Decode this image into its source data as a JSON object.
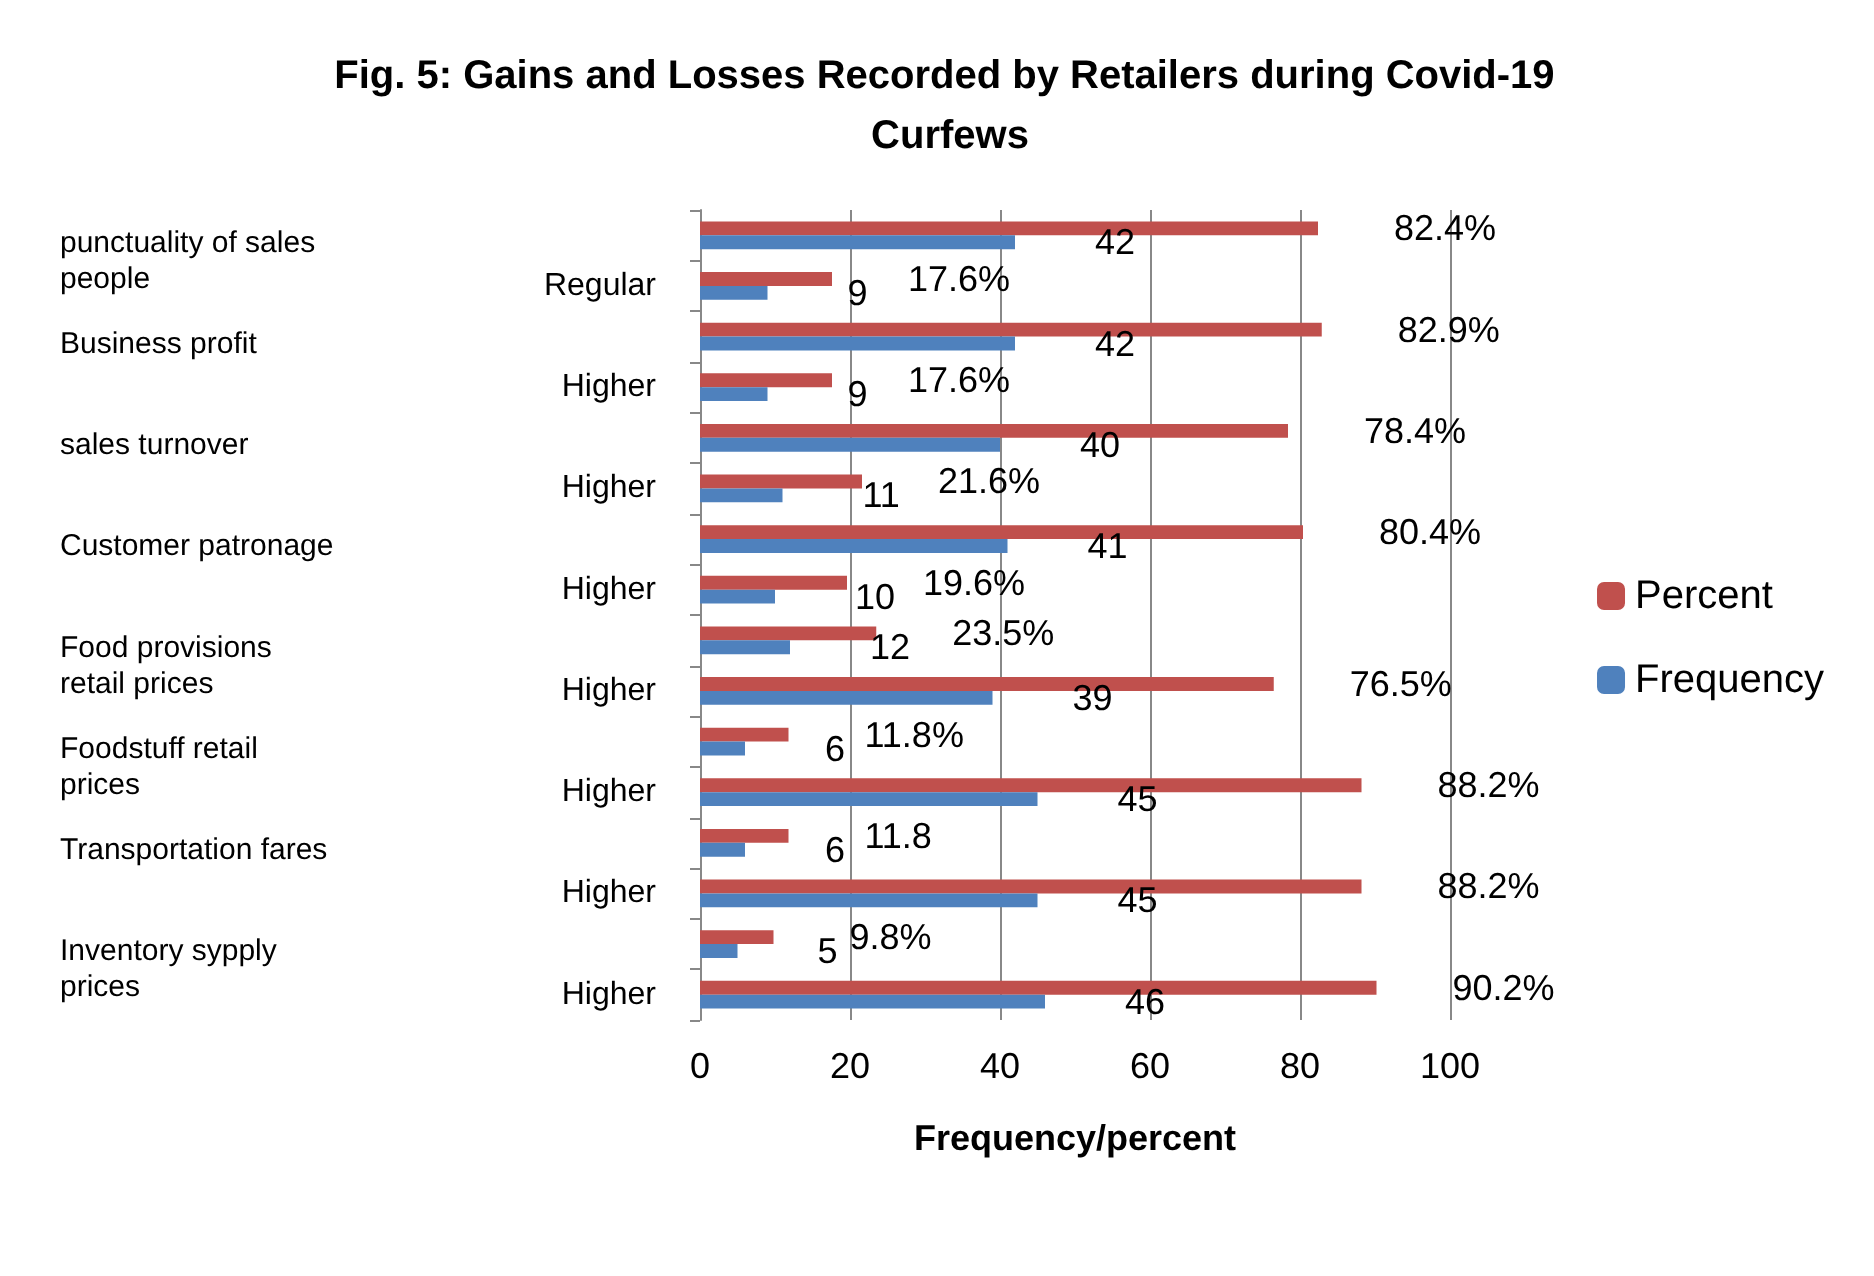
{
  "chart_data": {
    "type": "bar",
    "orientation": "horizontal",
    "title": "Fig. 5: Gains and Losses Recorded by Retailers during Covid-19 Curfews",
    "xlabel": "Frequency/percent",
    "categories": [
      null,
      "Regular",
      null,
      "Higher",
      null,
      "Higher",
      null,
      "Higher",
      null,
      "Higher",
      null,
      "Higher",
      null,
      "Higher",
      null,
      "Higher"
    ],
    "series": [
      {
        "name": "Percent",
        "color": "#c0504d",
        "values": [
          82.4,
          17.6,
          82.9,
          17.6,
          78.4,
          21.6,
          80.4,
          19.6,
          23.5,
          76.5,
          11.8,
          88.2,
          11.8,
          88.2,
          9.8,
          90.2
        ],
        "value_labels": [
          "82.4%",
          "17.6%",
          "82.9%",
          "17.6%",
          "78.4%",
          "21.6%",
          "80.4%",
          "19.6%",
          "23.5%",
          "76.5%",
          "11.8%",
          "88.2%",
          "11.8",
          "88.2%",
          "9.8%",
          "90.2%"
        ]
      },
      {
        "name": "Frequency",
        "color": "#4f81bd",
        "values": [
          42,
          9,
          42,
          9,
          40,
          11,
          41,
          10,
          12,
          39,
          6,
          45,
          6,
          45,
          5,
          46
        ],
        "data_labels": true
      }
    ],
    "annotations": [
      "punctuality of sales people",
      "Business profit",
      "sales turnover",
      "Customer patronage",
      "Food provisions retail prices",
      "Foodstuff retail prices",
      "Transportation fares",
      "Inventory sypply prices"
    ],
    "xlim": [
      0,
      100
    ],
    "xticks": [
      0,
      20,
      40,
      60,
      80,
      100
    ],
    "grid": "x",
    "legend": "right"
  }
}
